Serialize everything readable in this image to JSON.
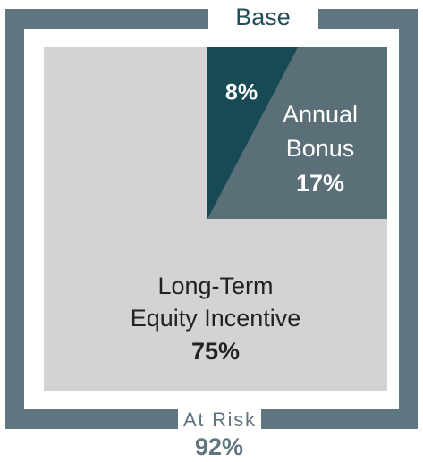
{
  "frame": {
    "top_label": "Base",
    "bottom_label": "At Risk",
    "bottom_value": "92%"
  },
  "segments": [
    {
      "value": "8%"
    },
    {
      "label_lines": [
        "Annual",
        "Bonus"
      ],
      "value": "17%"
    },
    {
      "label_lines": [
        "Long-Term",
        "Equity Incentive"
      ],
      "value": "75%"
    }
  ]
}
